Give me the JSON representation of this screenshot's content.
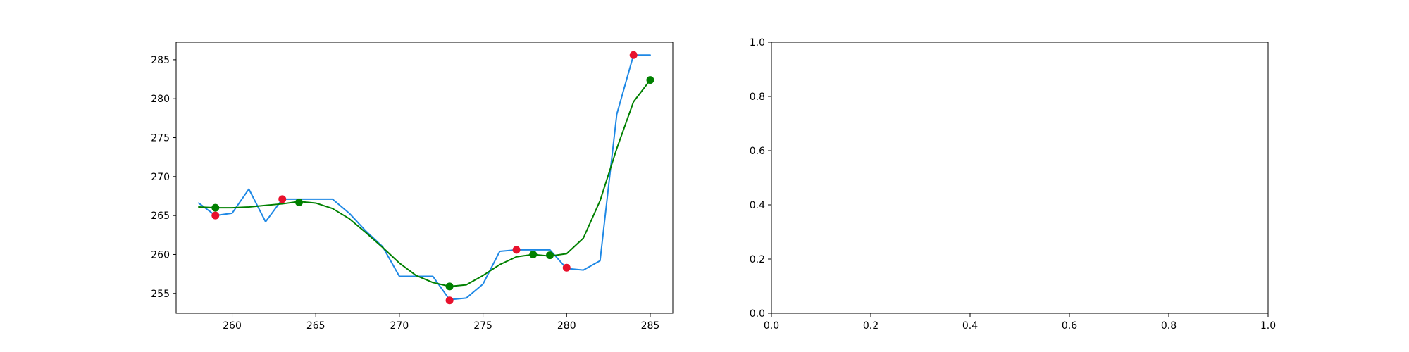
{
  "chart_data": [
    {
      "type": "line",
      "xlim": [
        256.65,
        286.35
      ],
      "ylim": [
        252.45,
        287.25
      ],
      "xticks": [
        260,
        265,
        270,
        275,
        280,
        285
      ],
      "xtick_labels": [
        "260",
        "265",
        "270",
        "275",
        "280",
        "285"
      ],
      "yticks": [
        255,
        260,
        265,
        270,
        275,
        280,
        285
      ],
      "ytick_labels": [
        "255",
        "260",
        "265",
        "270",
        "275",
        "280",
        "285"
      ],
      "grid": false,
      "legend": "none",
      "series": [
        {
          "kind": "line",
          "color": "#1e88e5",
          "x": [
            258,
            259,
            260,
            261,
            262,
            263,
            264,
            265,
            266,
            267,
            268,
            269,
            270,
            271,
            272,
            273,
            274,
            275,
            276,
            277,
            278,
            279,
            280,
            281,
            282,
            283,
            284,
            285
          ],
          "y": [
            266.6,
            265.0,
            265.3,
            268.4,
            264.2,
            267.1,
            267.1,
            267.1,
            267.1,
            265.3,
            263.0,
            261.0,
            257.2,
            257.2,
            257.2,
            254.2,
            254.4,
            256.2,
            260.4,
            260.6,
            260.6,
            260.6,
            258.2,
            258.0,
            259.2,
            278.0,
            285.6,
            285.6
          ]
        },
        {
          "kind": "line",
          "color": "#008000",
          "x": [
            258,
            259,
            260,
            261,
            262,
            263,
            264,
            265,
            266,
            267,
            268,
            269,
            270,
            271,
            272,
            273,
            274,
            275,
            276,
            277,
            278,
            279,
            280,
            281,
            282,
            283,
            284,
            285
          ],
          "y": [
            266.1,
            266.0,
            266.0,
            266.1,
            266.3,
            266.5,
            266.8,
            266.6,
            265.9,
            264.6,
            262.8,
            260.9,
            258.9,
            257.3,
            256.4,
            255.9,
            256.1,
            257.3,
            258.7,
            259.7,
            260.0,
            259.8,
            260.1,
            262.1,
            266.9,
            273.6,
            279.6,
            282.4
          ]
        },
        {
          "kind": "scatter",
          "color": "#e8112d",
          "x": [
            259,
            263,
            273,
            277,
            280,
            284
          ],
          "y": [
            265.0,
            267.1,
            254.1,
            260.6,
            258.3,
            285.6
          ]
        },
        {
          "kind": "scatter",
          "color": "#008000",
          "x": [
            259,
            264,
            273,
            278,
            279,
            285
          ],
          "y": [
            266.0,
            266.7,
            255.9,
            260.0,
            259.9,
            282.4
          ]
        }
      ]
    },
    {
      "type": "line",
      "xlim": [
        0.0,
        1.0
      ],
      "ylim": [
        0.0,
        1.0
      ],
      "xticks": [
        0.0,
        0.2,
        0.4,
        0.6,
        0.8,
        1.0
      ],
      "xtick_labels": [
        "0.0",
        "0.2",
        "0.4",
        "0.6",
        "0.8",
        "1.0"
      ],
      "yticks": [
        0.0,
        0.2,
        0.4,
        0.6,
        0.8,
        1.0
      ],
      "ytick_labels": [
        "0.0",
        "0.2",
        "0.4",
        "0.6",
        "0.8",
        "1.0"
      ],
      "grid": false,
      "legend": "none",
      "series": []
    }
  ]
}
